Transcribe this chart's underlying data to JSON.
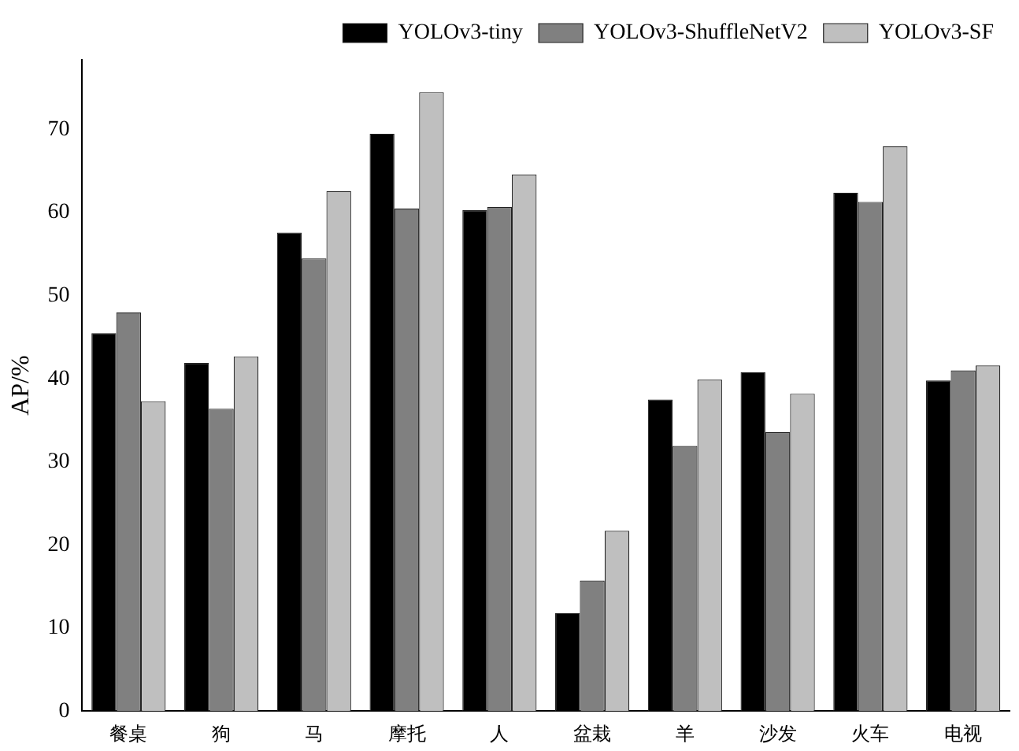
{
  "chart_data": {
    "type": "bar",
    "ylabel": "AP/%",
    "categories": [
      "餐桌",
      "狗",
      "马",
      "摩托",
      "人",
      "盆栽",
      "羊",
      "沙发",
      "火车",
      "电视"
    ],
    "series": [
      {
        "name": "YOLOv3-tiny",
        "color": "#000000",
        "values": [
          45.5,
          41.9,
          57.6,
          69.5,
          60.3,
          11.8,
          37.5,
          40.8,
          62.4,
          39.8
        ]
      },
      {
        "name": "YOLOv3-ShuffleNetV2",
        "color": "#808080",
        "values": [
          48.0,
          36.4,
          54.5,
          60.5,
          60.7,
          15.7,
          31.9,
          33.6,
          61.3,
          41.0
        ]
      },
      {
        "name": "YOLOv3-SF",
        "color": "#bfbfbf",
        "values": [
          37.3,
          42.7,
          62.6,
          74.5,
          64.6,
          21.7,
          39.9,
          38.2,
          68.0,
          41.6
        ]
      }
    ],
    "ylim": [
      0,
      78.4
    ],
    "yticks": [
      0,
      10,
      20,
      30,
      40,
      50,
      60,
      70
    ],
    "grid": false,
    "legend": "top right"
  }
}
